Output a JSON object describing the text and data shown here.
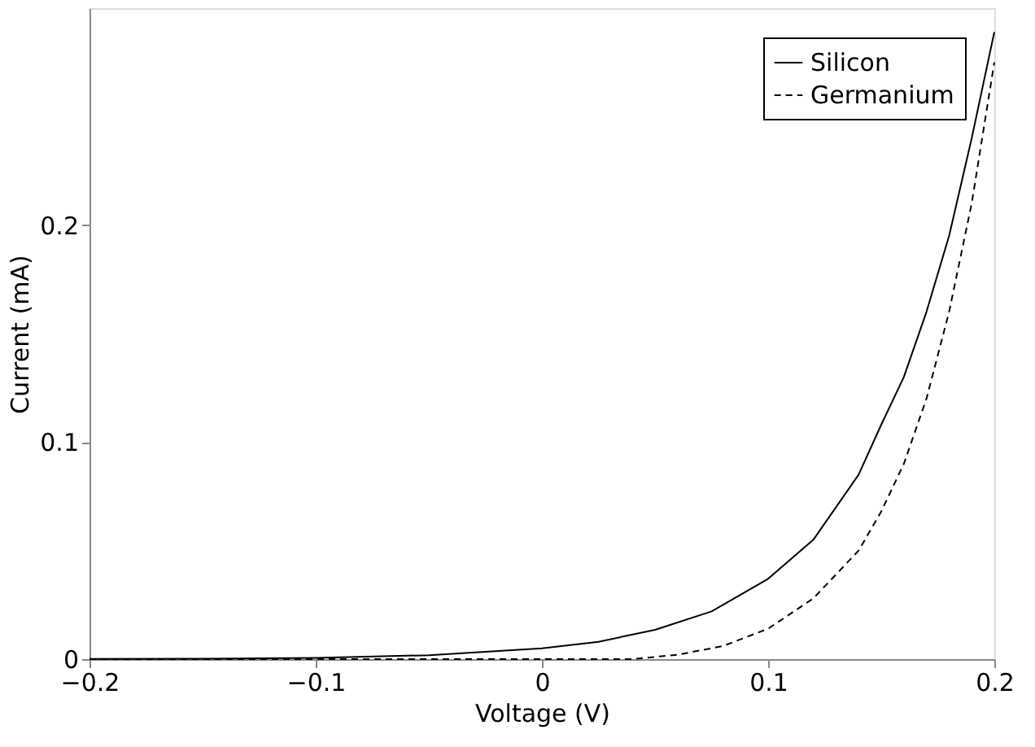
{
  "chart_data": {
    "type": "line",
    "xlabel": "Voltage (V)",
    "ylabel": "Current (mA)",
    "xlim": [
      -0.2,
      0.2
    ],
    "xticks": [
      -0.2,
      -0.1,
      0,
      0.1,
      0.2
    ],
    "ylim": [
      0,
      0.3
    ],
    "yticks": [
      0,
      0.1,
      0.2
    ],
    "grid": false,
    "legend": "top right",
    "marker": "none",
    "series": [
      {
        "name": "Silicon",
        "color": "#000000",
        "line_style": "solid",
        "x": [
          -0.2,
          -0.15,
          -0.1,
          -0.05,
          0,
          0.025,
          0.05,
          0.075,
          0.1,
          0.12,
          0.14,
          0.15,
          0.16,
          0.17,
          0.18,
          0.19,
          0.2
        ],
        "values": [
          0.0001,
          0.0002,
          0.0006,
          0.0018,
          0.005,
          0.008,
          0.0135,
          0.022,
          0.037,
          0.055,
          0.085,
          0.108,
          0.13,
          0.16,
          0.195,
          0.24,
          0.289
        ]
      },
      {
        "name": "Germanium",
        "color": "#000000",
        "line_style": "dashed",
        "x": [
          -0.2,
          0,
          0.04,
          0.06,
          0.08,
          0.1,
          0.12,
          0.14,
          0.15,
          0.16,
          0.17,
          0.18,
          0.19,
          0.2
        ],
        "values": [
          0,
          0,
          0,
          0.002,
          0.006,
          0.014,
          0.028,
          0.05,
          0.068,
          0.09,
          0.12,
          0.16,
          0.21,
          0.275
        ]
      }
    ]
  }
}
